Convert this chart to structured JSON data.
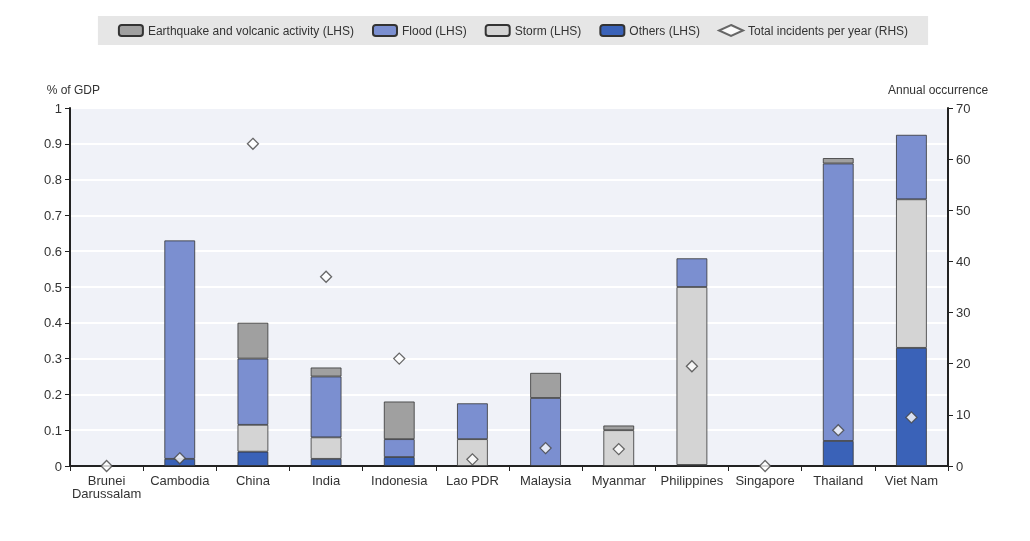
{
  "chart_data": {
    "type": "bar",
    "stacked": true,
    "ylabel": "% of GDP",
    "y2label": "Annual occurrence",
    "categories": [
      "Brunei\nDarussalam",
      "Cambodia",
      "China",
      "India",
      "Indonesia",
      "Lao PDR",
      "Malaysia",
      "Myanmar",
      "Philippines",
      "Singapore",
      "Thailand",
      "Viet Nam"
    ],
    "series": [
      {
        "name": "Others (LHS)",
        "color": "#3a62b8",
        "values": [
          0,
          0.02,
          0.04,
          0.02,
          0.025,
          0,
          0,
          0,
          0.003,
          0,
          0.07,
          0.33
        ]
      },
      {
        "name": "Storm (LHS)",
        "color": "#d4d4d4",
        "values": [
          0,
          0,
          0.075,
          0.06,
          null,
          0.075,
          0,
          0.1,
          0.497,
          0,
          null,
          0.415
        ]
      },
      {
        "name": "Flood (LHS)",
        "color": "#7b8fd0",
        "values": [
          0,
          0.61,
          0.185,
          0.17,
          0.05,
          0.1,
          0.19,
          0,
          0.08,
          0,
          0.775,
          0.18
        ]
      },
      {
        "name": "Earthquake and volcanic activity (LHS)",
        "color": "#a0a0a0",
        "values": [
          0,
          0,
          0.1,
          0.025,
          0.105,
          0,
          0.07,
          0.013,
          0,
          0,
          0.015,
          0
        ]
      },
      {
        "name": "Total incidents per year (RHS)",
        "type": "scatter",
        "axis": "y2",
        "marker": "diamond",
        "color": "#ffffff",
        "values": [
          0,
          1.5,
          63,
          37,
          21,
          1.3,
          3.5,
          3.3,
          19.5,
          0,
          7,
          9.5
        ]
      }
    ],
    "ylim": [
      0,
      1
    ],
    "yticks": [
      0,
      0.1,
      0.2,
      0.3,
      0.4,
      0.5,
      0.6,
      0.7,
      0.8,
      0.9,
      1
    ],
    "y2lim": [
      0,
      70
    ],
    "y2ticks": [
      0,
      10,
      20,
      30,
      40,
      50,
      60,
      70
    ],
    "grid": "y",
    "legend": "top"
  }
}
